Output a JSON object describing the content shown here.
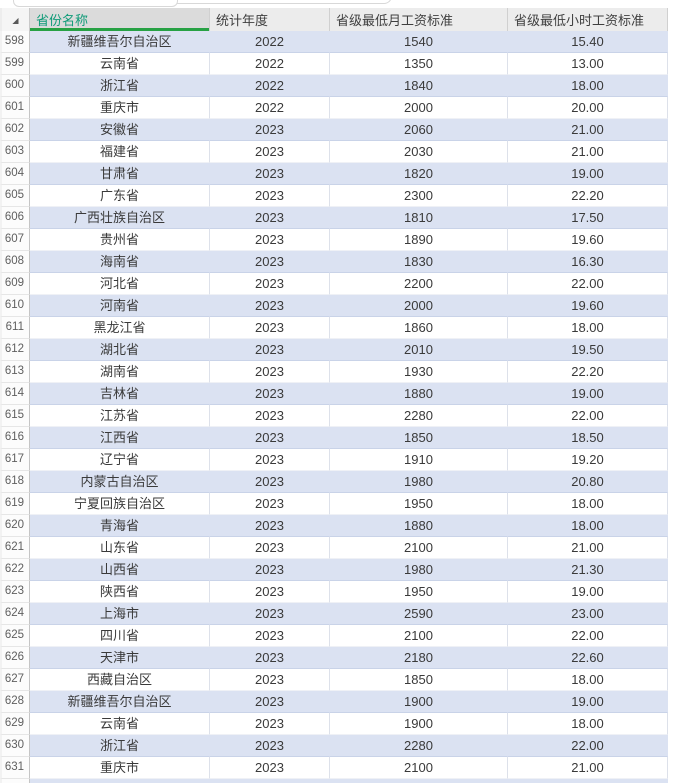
{
  "app": {
    "kind": "spreadsheet-data-grid",
    "accent_green_underline": "#27a144",
    "active_header_text_color": "#0f9b78",
    "band_blue": "#dbe2f2",
    "select_all_icon": "corner-triangle-icon",
    "triangle_glyph": "◢"
  },
  "table": {
    "columns": [
      {
        "key": "province",
        "label": "省份名称"
      },
      {
        "key": "year",
        "label": "统计年度"
      },
      {
        "key": "monthly",
        "label": "省级最低月工资标准"
      },
      {
        "key": "hourly",
        "label": "省级最低小时工资标准"
      }
    ],
    "rows": [
      {
        "row_no": "598",
        "province": "新疆维吾尔自治区",
        "year": "2022",
        "monthly": "1540",
        "hourly": "15.40"
      },
      {
        "row_no": "599",
        "province": "云南省",
        "year": "2022",
        "monthly": "1350",
        "hourly": "13.00"
      },
      {
        "row_no": "600",
        "province": "浙江省",
        "year": "2022",
        "monthly": "1840",
        "hourly": "18.00"
      },
      {
        "row_no": "601",
        "province": "重庆市",
        "year": "2022",
        "monthly": "2000",
        "hourly": "20.00"
      },
      {
        "row_no": "602",
        "province": "安徽省",
        "year": "2023",
        "monthly": "2060",
        "hourly": "21.00"
      },
      {
        "row_no": "603",
        "province": "福建省",
        "year": "2023",
        "monthly": "2030",
        "hourly": "21.00"
      },
      {
        "row_no": "604",
        "province": "甘肃省",
        "year": "2023",
        "monthly": "1820",
        "hourly": "19.00"
      },
      {
        "row_no": "605",
        "province": "广东省",
        "year": "2023",
        "monthly": "2300",
        "hourly": "22.20"
      },
      {
        "row_no": "606",
        "province": "广西壮族自治区",
        "year": "2023",
        "monthly": "1810",
        "hourly": "17.50"
      },
      {
        "row_no": "607",
        "province": "贵州省",
        "year": "2023",
        "monthly": "1890",
        "hourly": "19.60"
      },
      {
        "row_no": "608",
        "province": "海南省",
        "year": "2023",
        "monthly": "1830",
        "hourly": "16.30"
      },
      {
        "row_no": "609",
        "province": "河北省",
        "year": "2023",
        "monthly": "2200",
        "hourly": "22.00"
      },
      {
        "row_no": "610",
        "province": "河南省",
        "year": "2023",
        "monthly": "2000",
        "hourly": "19.60"
      },
      {
        "row_no": "611",
        "province": "黑龙江省",
        "year": "2023",
        "monthly": "1860",
        "hourly": "18.00"
      },
      {
        "row_no": "612",
        "province": "湖北省",
        "year": "2023",
        "monthly": "2010",
        "hourly": "19.50"
      },
      {
        "row_no": "613",
        "province": "湖南省",
        "year": "2023",
        "monthly": "1930",
        "hourly": "22.20"
      },
      {
        "row_no": "614",
        "province": "吉林省",
        "year": "2023",
        "monthly": "1880",
        "hourly": "19.00"
      },
      {
        "row_no": "615",
        "province": "江苏省",
        "year": "2023",
        "monthly": "2280",
        "hourly": "22.00"
      },
      {
        "row_no": "616",
        "province": "江西省",
        "year": "2023",
        "monthly": "1850",
        "hourly": "18.50"
      },
      {
        "row_no": "617",
        "province": "辽宁省",
        "year": "2023",
        "monthly": "1910",
        "hourly": "19.20"
      },
      {
        "row_no": "618",
        "province": "内蒙古自治区",
        "year": "2023",
        "monthly": "1980",
        "hourly": "20.80"
      },
      {
        "row_no": "619",
        "province": "宁夏回族自治区",
        "year": "2023",
        "monthly": "1950",
        "hourly": "18.00"
      },
      {
        "row_no": "620",
        "province": "青海省",
        "year": "2023",
        "monthly": "1880",
        "hourly": "18.00"
      },
      {
        "row_no": "621",
        "province": "山东省",
        "year": "2023",
        "monthly": "2100",
        "hourly": "21.00"
      },
      {
        "row_no": "622",
        "province": "山西省",
        "year": "2023",
        "monthly": "1980",
        "hourly": "21.30"
      },
      {
        "row_no": "623",
        "province": "陕西省",
        "year": "2023",
        "monthly": "1950",
        "hourly": "19.00"
      },
      {
        "row_no": "624",
        "province": "上海市",
        "year": "2023",
        "monthly": "2590",
        "hourly": "23.00"
      },
      {
        "row_no": "625",
        "province": "四川省",
        "year": "2023",
        "monthly": "2100",
        "hourly": "22.00"
      },
      {
        "row_no": "626",
        "province": "天津市",
        "year": "2023",
        "monthly": "2180",
        "hourly": "22.60"
      },
      {
        "row_no": "627",
        "province": "西藏自治区",
        "year": "2023",
        "monthly": "1850",
        "hourly": "18.00"
      },
      {
        "row_no": "628",
        "province": "新疆维吾尔自治区",
        "year": "2023",
        "monthly": "1900",
        "hourly": "19.00"
      },
      {
        "row_no": "629",
        "province": "云南省",
        "year": "2023",
        "monthly": "1900",
        "hourly": "18.00"
      },
      {
        "row_no": "630",
        "province": "浙江省",
        "year": "2023",
        "monthly": "2280",
        "hourly": "22.00"
      },
      {
        "row_no": "631",
        "province": "重庆市",
        "year": "2023",
        "monthly": "2100",
        "hourly": "21.00"
      }
    ]
  }
}
